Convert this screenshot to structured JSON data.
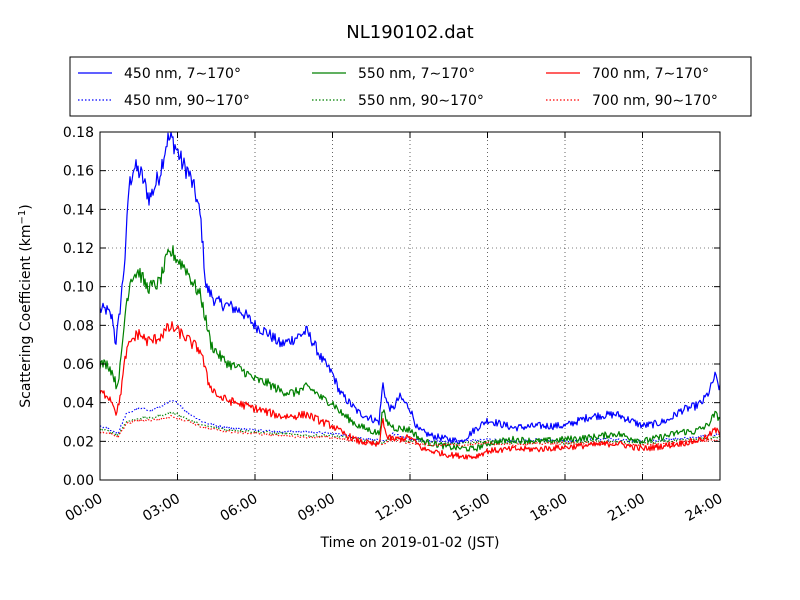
{
  "chart_data": {
    "type": "line",
    "title": "NL190102.dat",
    "xlabel": "Time on 2019-01-02 (JST)",
    "ylabel_main": "Scattering Coefficient (km",
    "ylabel_sup": "−1",
    "ylabel_end": ")",
    "xlim": [
      0,
      24
    ],
    "ylim": [
      0,
      0.18
    ],
    "grid": true,
    "legend_placement": "top",
    "x_ticks": [
      0,
      3,
      6,
      9,
      12,
      15,
      18,
      21,
      24
    ],
    "x_tick_labels": [
      "00:00",
      "03:00",
      "06:00",
      "09:00",
      "12:00",
      "15:00",
      "18:00",
      "21:00",
      "24:00"
    ],
    "y_ticks": [
      0,
      0.02,
      0.04,
      0.06,
      0.08,
      0.1,
      0.12,
      0.14,
      0.16,
      0.18
    ],
    "y_tick_labels": [
      "0.00",
      "0.02",
      "0.04",
      "0.06",
      "0.08",
      "0.10",
      "0.12",
      "0.14",
      "0.16",
      "0.18"
    ],
    "series": [
      {
        "name": "450 nm, 7∼170°",
        "color": "#0000ff",
        "style": "solid",
        "x": [
          0,
          0.25,
          0.5,
          0.6,
          0.75,
          1.0,
          1.1,
          1.3,
          1.6,
          1.9,
          2.0,
          2.3,
          2.6,
          2.8,
          3.0,
          3.2,
          3.4,
          3.7,
          3.9,
          4.1,
          4.5,
          5.0,
          5.5,
          6.0,
          6.5,
          7.0,
          7.5,
          8.0,
          8.3,
          8.6,
          9.0,
          9.3,
          10.0,
          10.8,
          10.95,
          11.1,
          11.3,
          11.6,
          12.0,
          12.3,
          12.8,
          13.5,
          14.0,
          14.5,
          15.0,
          15.5,
          16.0,
          17.0,
          18.0,
          19.0,
          20.0,
          21.0,
          21.5,
          22.0,
          22.5,
          23.0,
          23.3,
          23.6,
          23.8,
          24.0
        ],
        "y": [
          0.088,
          0.088,
          0.083,
          0.07,
          0.085,
          0.12,
          0.15,
          0.162,
          0.158,
          0.146,
          0.148,
          0.158,
          0.176,
          0.176,
          0.17,
          0.163,
          0.16,
          0.148,
          0.135,
          0.1,
          0.092,
          0.09,
          0.087,
          0.08,
          0.076,
          0.07,
          0.073,
          0.077,
          0.07,
          0.062,
          0.055,
          0.045,
          0.035,
          0.03,
          0.05,
          0.04,
          0.036,
          0.043,
          0.037,
          0.026,
          0.023,
          0.021,
          0.02,
          0.026,
          0.031,
          0.029,
          0.027,
          0.028,
          0.028,
          0.033,
          0.034,
          0.028,
          0.029,
          0.031,
          0.036,
          0.038,
          0.04,
          0.046,
          0.054,
          0.047
        ]
      },
      {
        "name": "450 nm, 90∼170°",
        "color": "#0000ff",
        "style": "dotted",
        "x": [
          0,
          0.4,
          0.7,
          1.0,
          1.5,
          2.0,
          2.5,
          2.8,
          3.0,
          3.3,
          3.6,
          4.0,
          4.5,
          5.0,
          6.0,
          7.0,
          8.0,
          9.0,
          10.0,
          11.0,
          11.3,
          12.0,
          13.0,
          14.0,
          15.0,
          16.0,
          17.0,
          18.0,
          19.0,
          20.0,
          21.0,
          22.0,
          23.0,
          24.0
        ],
        "y": [
          0.028,
          0.026,
          0.024,
          0.034,
          0.037,
          0.036,
          0.039,
          0.041,
          0.04,
          0.036,
          0.033,
          0.03,
          0.028,
          0.027,
          0.026,
          0.025,
          0.025,
          0.024,
          0.022,
          0.02,
          0.024,
          0.021,
          0.02,
          0.02,
          0.021,
          0.02,
          0.021,
          0.02,
          0.021,
          0.021,
          0.02,
          0.021,
          0.022,
          0.024
        ]
      },
      {
        "name": "550 nm, 7∼170°",
        "color": "#008000",
        "style": "solid",
        "x": [
          0,
          0.3,
          0.5,
          0.65,
          0.8,
          1.0,
          1.2,
          1.5,
          1.8,
          2.0,
          2.3,
          2.6,
          2.8,
          3.0,
          3.3,
          3.6,
          3.9,
          4.3,
          4.7,
          5.0,
          5.5,
          6.0,
          6.5,
          7.0,
          7.5,
          8.0,
          8.3,
          8.6,
          9.0,
          9.3,
          10.0,
          10.8,
          10.95,
          11.1,
          11.4,
          12.0,
          12.5,
          13.5,
          14.5,
          15.0,
          16.0,
          17.0,
          18.0,
          19.0,
          20.0,
          21.0,
          22.0,
          22.5,
          23.0,
          23.5,
          23.8,
          24.0
        ],
        "y": [
          0.06,
          0.06,
          0.055,
          0.048,
          0.06,
          0.09,
          0.105,
          0.108,
          0.1,
          0.1,
          0.102,
          0.115,
          0.118,
          0.114,
          0.11,
          0.102,
          0.095,
          0.07,
          0.063,
          0.06,
          0.057,
          0.052,
          0.05,
          0.046,
          0.045,
          0.048,
          0.046,
          0.042,
          0.04,
          0.035,
          0.028,
          0.024,
          0.036,
          0.03,
          0.027,
          0.026,
          0.02,
          0.017,
          0.016,
          0.019,
          0.021,
          0.02,
          0.021,
          0.022,
          0.024,
          0.02,
          0.023,
          0.025,
          0.025,
          0.028,
          0.034,
          0.032
        ]
      },
      {
        "name": "550 nm, 90∼170°",
        "color": "#008000",
        "style": "dotted",
        "x": [
          0,
          0.4,
          0.7,
          1.0,
          1.5,
          2.0,
          2.5,
          2.8,
          3.0,
          3.5,
          4.0,
          5.0,
          6.0,
          7.0,
          8.0,
          9.0,
          10.0,
          11.0,
          11.2,
          12.0,
          13.0,
          14.0,
          15.0,
          16.0,
          17.0,
          18.0,
          19.0,
          20.0,
          21.0,
          22.0,
          23.0,
          24.0
        ],
        "y": [
          0.026,
          0.025,
          0.023,
          0.03,
          0.032,
          0.032,
          0.034,
          0.035,
          0.034,
          0.031,
          0.028,
          0.026,
          0.025,
          0.024,
          0.023,
          0.023,
          0.021,
          0.019,
          0.022,
          0.02,
          0.019,
          0.019,
          0.02,
          0.019,
          0.02,
          0.019,
          0.02,
          0.02,
          0.019,
          0.02,
          0.021,
          0.022
        ]
      },
      {
        "name": "700 nm, 7∼170°",
        "color": "#ff0000",
        "style": "solid",
        "x": [
          0,
          0.3,
          0.5,
          0.65,
          0.8,
          1.0,
          1.2,
          1.5,
          1.8,
          2.0,
          2.3,
          2.6,
          2.8,
          3.0,
          3.3,
          3.6,
          3.9,
          4.2,
          4.6,
          5.0,
          5.5,
          6.0,
          6.5,
          7.0,
          7.5,
          8.0,
          8.3,
          8.6,
          9.0,
          9.3,
          10.0,
          10.8,
          10.95,
          11.1,
          11.4,
          12.0,
          12.5,
          13.5,
          14.5,
          15.0,
          16.0,
          17.0,
          18.0,
          19.0,
          20.0,
          21.0,
          22.0,
          22.5,
          23.0,
          23.5,
          23.8,
          24.0
        ],
        "y": [
          0.045,
          0.044,
          0.04,
          0.034,
          0.045,
          0.065,
          0.072,
          0.076,
          0.072,
          0.072,
          0.074,
          0.078,
          0.079,
          0.077,
          0.074,
          0.07,
          0.067,
          0.05,
          0.043,
          0.041,
          0.039,
          0.037,
          0.035,
          0.033,
          0.033,
          0.034,
          0.032,
          0.03,
          0.028,
          0.025,
          0.02,
          0.018,
          0.032,
          0.022,
          0.021,
          0.022,
          0.016,
          0.013,
          0.012,
          0.015,
          0.016,
          0.016,
          0.017,
          0.018,
          0.019,
          0.016,
          0.018,
          0.019,
          0.02,
          0.022,
          0.026,
          0.024
        ]
      },
      {
        "name": "700 nm, 90∼170°",
        "color": "#ff0000",
        "style": "dotted",
        "x": [
          0,
          0.4,
          0.7,
          1.0,
          1.5,
          2.0,
          2.5,
          2.8,
          3.0,
          3.5,
          4.0,
          5.0,
          6.0,
          7.0,
          8.0,
          9.0,
          10.0,
          11.0,
          11.2,
          12.0,
          13.0,
          14.0,
          15.0,
          16.0,
          17.0,
          18.0,
          19.0,
          20.0,
          21.0,
          22.0,
          23.0,
          24.0
        ],
        "y": [
          0.025,
          0.024,
          0.022,
          0.029,
          0.031,
          0.031,
          0.032,
          0.033,
          0.032,
          0.03,
          0.027,
          0.025,
          0.024,
          0.023,
          0.022,
          0.022,
          0.02,
          0.018,
          0.021,
          0.019,
          0.018,
          0.018,
          0.019,
          0.018,
          0.019,
          0.019,
          0.019,
          0.019,
          0.018,
          0.019,
          0.02,
          0.021
        ]
      }
    ]
  }
}
